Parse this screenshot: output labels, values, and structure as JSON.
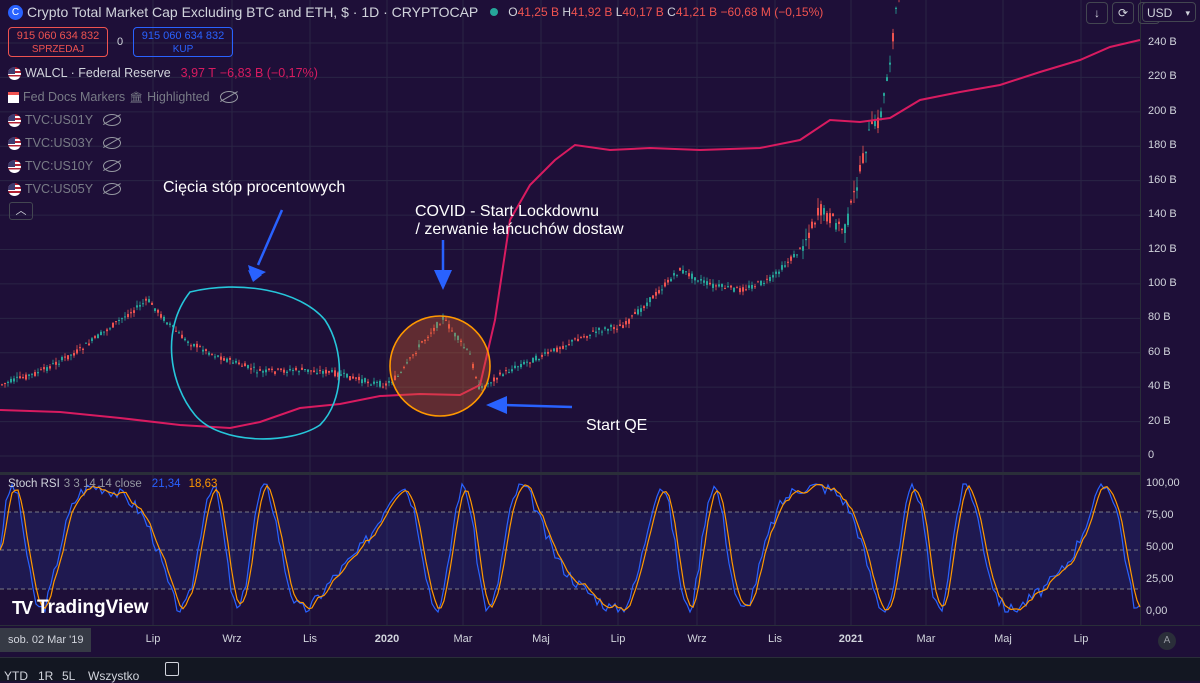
{
  "header": {
    "title": "Crypto Total Market Cap Excluding BTC and ETH, $ · 1D · CRYPTOCAP",
    "ohlc": {
      "o_label": "O",
      "o": "41,25 B",
      "h_label": "H",
      "h": "41,92 B",
      "l_label": "L",
      "l": "40,17 B",
      "c_label": "C",
      "c": "41,21 B",
      "change": "−60,68 M (−0,15%)"
    },
    "currency": "USD"
  },
  "trade": {
    "sell_price": "915 060 634 832",
    "sell_label": "SPRZEDAJ",
    "spread": "0",
    "buy_price": "915 060 634 832",
    "buy_label": "KUP"
  },
  "legend": {
    "walcl_name": "WALCL · Federal Reserve",
    "walcl_value": "3,97 T",
    "walcl_change": "−6,83 B (−0,17%)",
    "fed_markers": "Fed Docs Markers",
    "fed_markers_state": "Highlighted",
    "us01y": "TVC:US01Y",
    "us03y": "TVC:US03Y",
    "us10y": "TVC:US10Y",
    "us05y": "TVC:US05Y"
  },
  "annotations": {
    "rate_cuts": "Cięcia stóp procentowych",
    "covid_line1": "COVID - Start Lockdownu",
    "covid_line2": " / zerwanie łańcuchów dostaw",
    "start_qe": "Start QE"
  },
  "price_axis": [
    "240 B",
    "220 B",
    "200 B",
    "180 B",
    "160 B",
    "140 B",
    "120 B",
    "100 B",
    "80 B",
    "60 B",
    "40 B",
    "20 B",
    "0"
  ],
  "stoch": {
    "name": "Stoch RSI",
    "params": "3 3 14 14 close",
    "k": "21,34",
    "d": "18,63",
    "axis": [
      "100,00",
      "75,00",
      "50,00",
      "25,00",
      "0,00"
    ]
  },
  "time_axis": {
    "current": "sob. 02 Mar '19",
    "ticks": [
      "Lip",
      "Wrz",
      "Lis",
      "2020",
      "Mar",
      "Maj",
      "Lip",
      "Wrz",
      "Lis",
      "2021",
      "Mar",
      "Maj",
      "Lip"
    ]
  },
  "toolbar": {
    "ytd": "YTD",
    "r1": "1R",
    "r5": "5L",
    "all": "Wszystko"
  },
  "branding": {
    "logo_text": "TradingView"
  },
  "colors": {
    "walcl": "#d81b60",
    "candle_up": "#26a69a",
    "candle_down": "#ef5350",
    "stoch_k": "#2962ff",
    "stoch_d": "#ff9800",
    "circle_cyan": "#26c6da",
    "circle_orange": "#ff9800",
    "arrow": "#2962ff"
  }
}
